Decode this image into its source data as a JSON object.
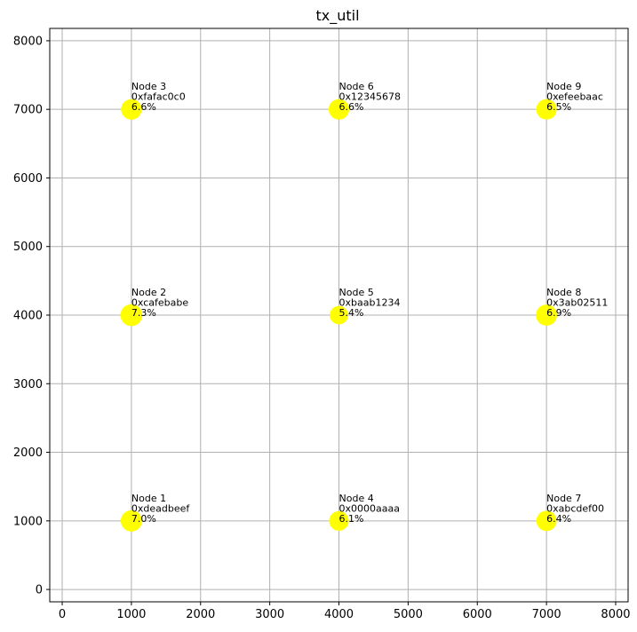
{
  "chart_data": {
    "type": "scatter",
    "title": "tx_util",
    "xlabel": "",
    "ylabel": "",
    "xlim": [
      -180,
      8180
    ],
    "ylim": [
      -180,
      8180
    ],
    "xticks": [
      0,
      1000,
      2000,
      3000,
      4000,
      5000,
      6000,
      7000,
      8000
    ],
    "yticks": [
      0,
      1000,
      2000,
      3000,
      4000,
      5000,
      6000,
      7000,
      8000
    ],
    "grid": true,
    "marker_color": "#ffff00",
    "points": [
      {
        "x": 1000,
        "y": 1000,
        "name": "Node 1",
        "id": "0xdeadbeef",
        "util": "7.0%",
        "util_value": 7.0
      },
      {
        "x": 1000,
        "y": 4000,
        "name": "Node 2",
        "id": "0xcafebabe",
        "util": "7.3%",
        "util_value": 7.3
      },
      {
        "x": 1000,
        "y": 7000,
        "name": "Node 3",
        "id": "0xfafac0c0",
        "util": "6.6%",
        "util_value": 6.6
      },
      {
        "x": 4000,
        "y": 1000,
        "name": "Node 4",
        "id": "0x0000aaaa",
        "util": "6.1%",
        "util_value": 6.1
      },
      {
        "x": 4000,
        "y": 4000,
        "name": "Node 5",
        "id": "0xbaab1234",
        "util": "5.4%",
        "util_value": 5.4
      },
      {
        "x": 4000,
        "y": 7000,
        "name": "Node 6",
        "id": "0x12345678",
        "util": "6.6%",
        "util_value": 6.6
      },
      {
        "x": 7000,
        "y": 1000,
        "name": "Node 7",
        "id": "0xabcdef00",
        "util": "6.4%",
        "util_value": 6.4
      },
      {
        "x": 7000,
        "y": 4000,
        "name": "Node 8",
        "id": "0x3ab02511",
        "util": "6.9%",
        "util_value": 6.9
      },
      {
        "x": 7000,
        "y": 7000,
        "name": "Node 9",
        "id": "0xefeebaac",
        "util": "6.5%",
        "util_value": 6.5
      }
    ]
  }
}
